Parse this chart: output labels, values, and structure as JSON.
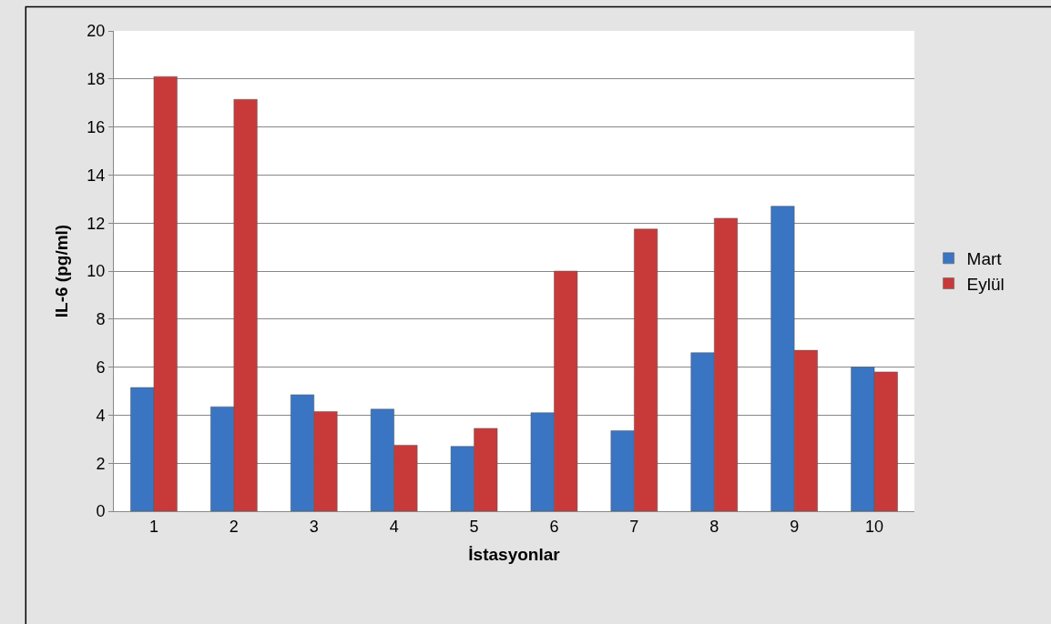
{
  "chart_data": {
    "type": "bar",
    "xlabel": "İstasyonlar",
    "ylabel": "IL-6 (pg/ml)",
    "categories": [
      "1",
      "2",
      "3",
      "4",
      "5",
      "6",
      "7",
      "8",
      "9",
      "10"
    ],
    "series": [
      {
        "name": "Mart",
        "color": "#3a75c4",
        "values": [
          5.15,
          4.35,
          4.85,
          4.25,
          2.7,
          4.1,
          3.35,
          6.6,
          12.7,
          6.0
        ]
      },
      {
        "name": "Eylül",
        "color": "#c83a3a",
        "values": [
          18.1,
          17.15,
          4.15,
          2.75,
          3.45,
          10.0,
          11.75,
          12.2,
          6.7,
          5.8
        ]
      }
    ],
    "ylim": [
      0,
      20
    ],
    "yticks": [
      0,
      2,
      4,
      6,
      8,
      10,
      12,
      14,
      16,
      18,
      20
    ],
    "grid": "y",
    "legend": "right"
  }
}
